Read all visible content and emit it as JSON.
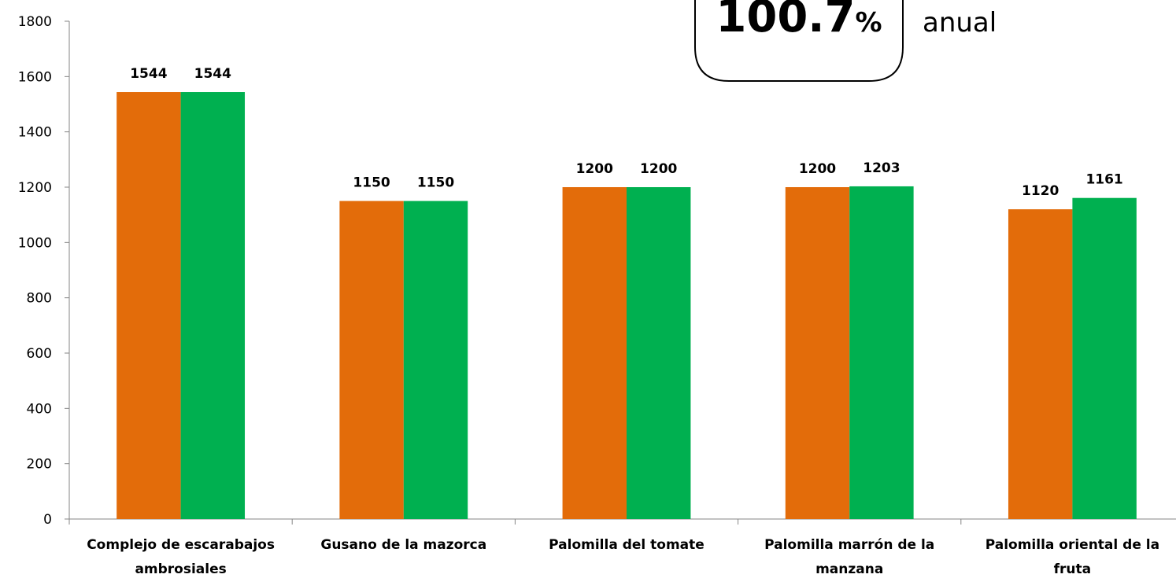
{
  "callout": {
    "value": "100.7",
    "unit": "%",
    "note": "anual"
  },
  "colors": {
    "series_1": "#E36C0A",
    "series_2": "#00B050"
  },
  "chart_data": {
    "type": "bar",
    "categories": [
      [
        "Complejo de escarabajos",
        "ambrosiales"
      ],
      [
        "Gusano de la mazorca"
      ],
      [
        "Palomilla del tomate"
      ],
      [
        "Palomilla marrón de la",
        "manzana"
      ],
      [
        "Palomilla oriental de la",
        "fruta"
      ]
    ],
    "series": [
      {
        "values": [
          1544,
          1150,
          1200,
          1200,
          1120
        ]
      },
      {
        "values": [
          1544,
          1150,
          1200,
          1203,
          1161
        ]
      }
    ],
    "y_ticks": [
      "0",
      "200",
      "400",
      "600",
      "800",
      "1000",
      "1200",
      "1400",
      "1600",
      "1800"
    ],
    "ylim": [
      0,
      1800
    ],
    "grid": false,
    "legend": "none"
  }
}
